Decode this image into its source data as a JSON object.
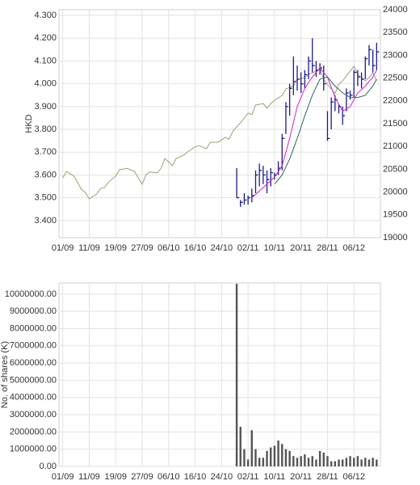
{
  "chart_data": [
    {
      "type": "stock",
      "y_label": "HKD",
      "grid": true,
      "xlim": [
        -1,
        84
      ],
      "xticks": [
        {
          "value": 0,
          "label": "01/09"
        },
        {
          "value": 7,
          "label": "11/09"
        },
        {
          "value": 14,
          "label": "19/09"
        },
        {
          "value": 21,
          "label": "27/09"
        },
        {
          "value": 28,
          "label": "06/10"
        },
        {
          "value": 35,
          "label": "16/10"
        },
        {
          "value": 42,
          "label": "24/10"
        },
        {
          "value": 49,
          "label": "02/11"
        },
        {
          "value": 56,
          "label": "10/11"
        },
        {
          "value": 63,
          "label": "20/11"
        },
        {
          "value": 70,
          "label": "28/11"
        },
        {
          "value": 77,
          "label": "06/12"
        }
      ],
      "ylim": [
        3.325,
        4.325
      ],
      "yticks": [
        {
          "value": 3.4,
          "label": "3.400"
        },
        {
          "value": 3.5,
          "label": "3.500"
        },
        {
          "value": 3.6,
          "label": "3.600"
        },
        {
          "value": 3.7,
          "label": "3.700"
        },
        {
          "value": 3.8,
          "label": "3.800"
        },
        {
          "value": 3.9,
          "label": "3.900"
        },
        {
          "value": 4.0,
          "label": "4.000"
        },
        {
          "value": 4.1,
          "label": "4.100"
        },
        {
          "value": 4.2,
          "label": "4.200"
        },
        {
          "value": 4.3,
          "label": "4.300"
        }
      ],
      "y2lim": [
        19000,
        24000
      ],
      "y2ticks": [
        19000,
        19500,
        20000,
        20500,
        21000,
        21500,
        22000,
        22500,
        23000,
        23500,
        24000
      ],
      "series": [
        {
          "kind": "line",
          "axis": "y2",
          "color": "#a0a070",
          "x": [
            0,
            1,
            3,
            5,
            6,
            7,
            9,
            10,
            11,
            12,
            14,
            15,
            17,
            19,
            21,
            22,
            23,
            25,
            26,
            27,
            29,
            30,
            32,
            33,
            35,
            36,
            38,
            39,
            41,
            43,
            44,
            45,
            47,
            49,
            50,
            51,
            53,
            54,
            55,
            56,
            58,
            59,
            61,
            62,
            64,
            65,
            67,
            68,
            69,
            71,
            72,
            73,
            74,
            76,
            77,
            78,
            80,
            81,
            82,
            83
          ],
          "values": [
            20310,
            20450,
            20350,
            20050,
            19990,
            19850,
            19960,
            20080,
            20100,
            20210,
            20350,
            20490,
            20520,
            20450,
            20170,
            20380,
            20440,
            20420,
            20520,
            20740,
            20580,
            20740,
            20810,
            20880,
            20990,
            21020,
            20950,
            21090,
            21090,
            21200,
            21160,
            21340,
            21520,
            21730,
            21700,
            21910,
            21940,
            21840,
            21940,
            22010,
            22120,
            22260,
            22330,
            22470,
            22510,
            22580,
            22650,
            22720,
            22470,
            22260,
            22160,
            22370,
            22440,
            22650,
            22760,
            22580,
            22440,
            22510,
            22620,
            22440
          ]
        },
        {
          "kind": "ohlc",
          "color": "#1a1a8c",
          "x": [
            46,
            47,
            48,
            49,
            50,
            51,
            52,
            53,
            54,
            55,
            56,
            57,
            58,
            59,
            60,
            61,
            62,
            63,
            64,
            65,
            66,
            67,
            68,
            69,
            70,
            71,
            72,
            73,
            74,
            75,
            76,
            77,
            78,
            79,
            80,
            81,
            82,
            83
          ],
          "high": [
            3.63,
            3.49,
            3.52,
            3.51,
            3.54,
            3.62,
            3.65,
            3.64,
            3.62,
            3.63,
            3.61,
            3.66,
            3.78,
            3.92,
            4.0,
            4.12,
            4.08,
            4.05,
            4.06,
            4.12,
            4.2,
            4.1,
            4.09,
            4.08,
            3.88,
            3.94,
            3.95,
            3.91,
            3.9,
            3.98,
            3.97,
            4.06,
            4.06,
            4.05,
            4.12,
            4.17,
            4.15,
            4.18
          ],
          "low": [
            3.5,
            3.46,
            3.47,
            3.47,
            3.48,
            3.52,
            3.55,
            3.56,
            3.52,
            3.55,
            3.58,
            3.6,
            3.62,
            3.78,
            3.86,
            3.95,
            3.97,
            3.96,
            3.98,
            4.02,
            4.05,
            4.03,
            4.04,
            3.97,
            3.75,
            3.8,
            3.88,
            3.87,
            3.82,
            3.88,
            3.93,
            3.94,
            3.99,
            3.98,
            4.02,
            4.08,
            4.05,
            4.06
          ],
          "close": [
            3.5,
            3.48,
            3.49,
            3.5,
            3.51,
            3.6,
            3.62,
            3.6,
            3.58,
            3.61,
            3.6,
            3.63,
            3.76,
            3.9,
            3.98,
            4.01,
            4.02,
            4.0,
            4.04,
            4.1,
            4.08,
            4.06,
            4.07,
            4.0,
            3.76,
            3.92,
            3.93,
            3.9,
            3.86,
            3.96,
            3.95,
            4.05,
            4.03,
            4.02,
            4.11,
            4.15,
            4.08,
            4.14
          ]
        },
        {
          "kind": "line",
          "color": "#d020d0",
          "x": [
            50,
            52,
            54,
            56,
            58,
            60,
            62,
            64,
            66,
            68,
            70,
            72,
            74,
            76,
            78,
            80,
            82,
            83
          ],
          "values": [
            3.5,
            3.53,
            3.56,
            3.59,
            3.64,
            3.76,
            3.9,
            3.98,
            4.03,
            4.07,
            4.03,
            3.94,
            3.88,
            3.9,
            3.96,
            3.99,
            4.03,
            4.06
          ]
        },
        {
          "kind": "line",
          "color": "#2a6a5a",
          "x": [
            56,
            58,
            60,
            62,
            64,
            66,
            68,
            70,
            72,
            74,
            76,
            78,
            80,
            82,
            83
          ],
          "values": [
            3.56,
            3.6,
            3.67,
            3.76,
            3.86,
            3.95,
            4.02,
            4.03,
            3.99,
            3.96,
            3.94,
            3.94,
            3.95,
            3.99,
            4.02
          ]
        }
      ]
    },
    {
      "type": "bar",
      "y_label": "No. of shares (K)",
      "grid": true,
      "color": "#555555",
      "xlim": [
        -1,
        84
      ],
      "xticks": [
        {
          "value": 0,
          "label": "01/09"
        },
        {
          "value": 7,
          "label": "11/09"
        },
        {
          "value": 14,
          "label": "19/09"
        },
        {
          "value": 21,
          "label": "27/09"
        },
        {
          "value": 28,
          "label": "06/10"
        },
        {
          "value": 35,
          "label": "16/10"
        },
        {
          "value": 42,
          "label": "24/10"
        },
        {
          "value": 49,
          "label": "02/11"
        },
        {
          "value": 56,
          "label": "10/11"
        },
        {
          "value": 63,
          "label": "20/11"
        },
        {
          "value": 70,
          "label": "28/11"
        },
        {
          "value": 77,
          "label": "06/12"
        }
      ],
      "ylim": [
        0,
        10650000
      ],
      "yticks": [
        {
          "value": 0,
          "label": "0.00"
        },
        {
          "value": 1000000,
          "label": "1000000.00"
        },
        {
          "value": 2000000,
          "label": "2000000.00"
        },
        {
          "value": 3000000,
          "label": "3000000.00"
        },
        {
          "value": 4000000,
          "label": "4000000.00"
        },
        {
          "value": 5000000,
          "label": "5000000.00"
        },
        {
          "value": 6000000,
          "label": "6000000.00"
        },
        {
          "value": 7000000,
          "label": "7000000.00"
        },
        {
          "value": 8000000,
          "label": "8000000.00"
        },
        {
          "value": 9000000,
          "label": "9000000.00"
        },
        {
          "value": 10000000,
          "label": "10000000.00"
        }
      ],
      "x": [
        46,
        47,
        48,
        49,
        50,
        51,
        52,
        53,
        54,
        55,
        56,
        57,
        58,
        59,
        60,
        61,
        62,
        63,
        64,
        65,
        66,
        67,
        68,
        69,
        70,
        71,
        72,
        73,
        74,
        75,
        76,
        77,
        78,
        79,
        80,
        81,
        82,
        83
      ],
      "values": [
        10600000,
        2300000,
        1000000,
        400000,
        2100000,
        1000000,
        500000,
        500000,
        900000,
        1100000,
        1200000,
        1500000,
        1300000,
        1000000,
        900000,
        600000,
        500000,
        600000,
        700000,
        500000,
        600000,
        400000,
        900000,
        800000,
        600000,
        300000,
        300000,
        400000,
        400000,
        500000,
        600000,
        500000,
        600000,
        400000,
        500000,
        400000,
        500000,
        400000
      ]
    }
  ]
}
